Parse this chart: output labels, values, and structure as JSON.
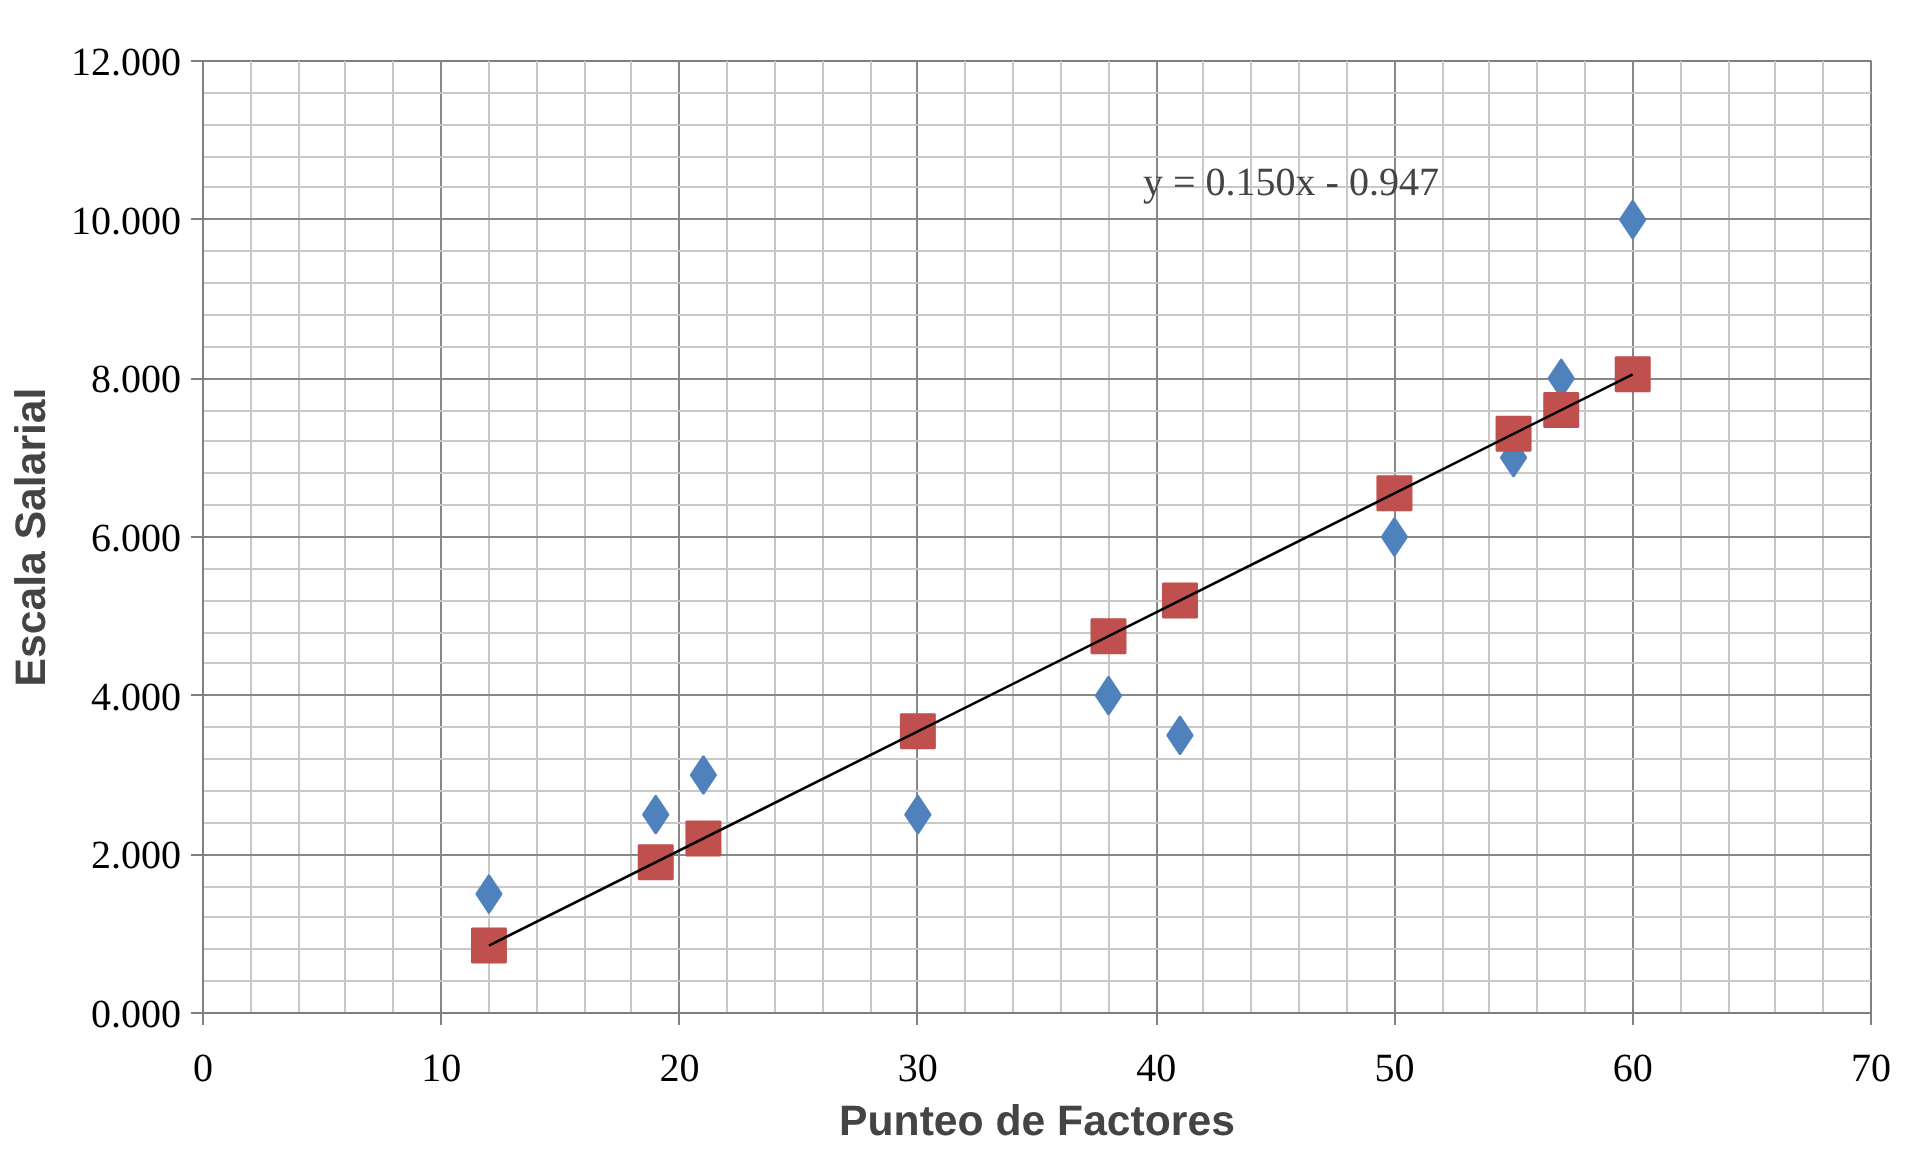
{
  "chart_data": {
    "type": "scatter",
    "xlabel": "Punteo de Factores",
    "ylabel": "Escala Salarial",
    "annotations": [
      "y = 0.150x - 0.947"
    ],
    "xlim": [
      0,
      70
    ],
    "xticks": [
      0,
      10,
      20,
      30,
      40,
      50,
      60,
      70
    ],
    "ylim": [
      0,
      12
    ],
    "yticks": [
      {
        "value": 0,
        "label": "0.000"
      },
      {
        "value": 2,
        "label": "2.000"
      },
      {
        "value": 4,
        "label": "4.000"
      },
      {
        "value": 6,
        "label": "6.000"
      },
      {
        "value": 8,
        "label": "8.000"
      },
      {
        "value": 10,
        "label": "10.000"
      },
      {
        "value": 12,
        "label": "12.000"
      }
    ],
    "grid": true,
    "series": [
      {
        "marker": "diamond",
        "color": "#4f81bd",
        "x": [
          12,
          19,
          21,
          30,
          38,
          41,
          50,
          55,
          57,
          60
        ],
        "values": [
          1.5,
          2.5,
          3.0,
          2.5,
          4.0,
          3.5,
          6.0,
          7.0,
          8.0,
          10.0
        ]
      },
      {
        "marker": "square",
        "color": "#c0504d",
        "x": [
          12,
          19,
          21,
          30,
          38,
          41,
          50,
          55,
          57,
          60
        ],
        "values": [
          0.85,
          1.9,
          2.2,
          3.55,
          4.75,
          5.2,
          6.55,
          7.3,
          7.6,
          8.05
        ]
      },
      {
        "type": "line",
        "line_style": "solid",
        "color": "#000000",
        "x": [
          12,
          60
        ],
        "values": [
          0.85,
          8.05
        ]
      }
    ]
  }
}
